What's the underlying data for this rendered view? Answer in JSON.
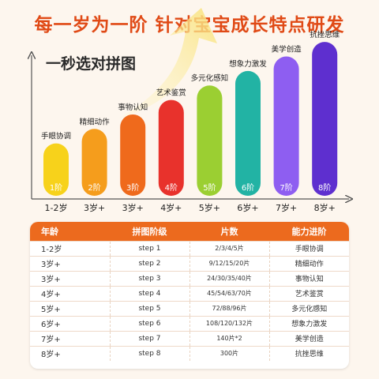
{
  "headline": "每一岁为一阶  针对宝宝成长特点研发",
  "subtitle": "一秒选对拼图",
  "colors": {
    "accent": "#e04a16",
    "table_header": "#ec6a1e",
    "bars": [
      "#f7d21b",
      "#f59d1c",
      "#ef6a1c",
      "#e8322c",
      "#9bcf32",
      "#22b3a4",
      "#8e5ef1",
      "#5e2fcf"
    ]
  },
  "chart_data": {
    "type": "bar",
    "categories": [
      "1阶",
      "2阶",
      "3阶",
      "4阶",
      "5阶",
      "6阶",
      "7阶",
      "8阶"
    ],
    "x_tick_labels": [
      "1-2岁",
      "3岁+",
      "3岁+",
      "4岁+",
      "5岁+",
      "6岁+",
      "7岁+",
      "8岁+"
    ],
    "values": [
      1,
      2,
      3,
      4,
      5,
      6,
      7,
      8
    ],
    "annotations": [
      "手眼协调",
      "精细动作",
      "事物认知",
      "艺术鉴赏",
      "多元化感知",
      "想象力激发",
      "美学创造",
      "抗挫思维"
    ],
    "ylim": [
      0,
      8.5
    ],
    "grid": false,
    "legend": "none"
  },
  "table": {
    "headers": [
      "年龄",
      "拼图阶级",
      "片数",
      "能力进阶"
    ],
    "rows": [
      [
        "1-2岁",
        "step 1",
        "2/3/4/5片",
        "手眼协调"
      ],
      [
        "3岁+",
        "step 2",
        "9/12/15/20片",
        "精细动作"
      ],
      [
        "3岁+",
        "step 3",
        "24/30/35/40片",
        "事物认知"
      ],
      [
        "4岁+",
        "step 4",
        "45/54/63/70片",
        "艺术鉴赏"
      ],
      [
        "5岁+",
        "step 5",
        "72/88/96片",
        "多元化感知"
      ],
      [
        "6岁+",
        "step 6",
        "108/120/132片",
        "想象力激发"
      ],
      [
        "7岁+",
        "step 7",
        "140片*2",
        "美学创造"
      ],
      [
        "8岁+",
        "step 8",
        "300片",
        "抗挫思维"
      ]
    ]
  }
}
